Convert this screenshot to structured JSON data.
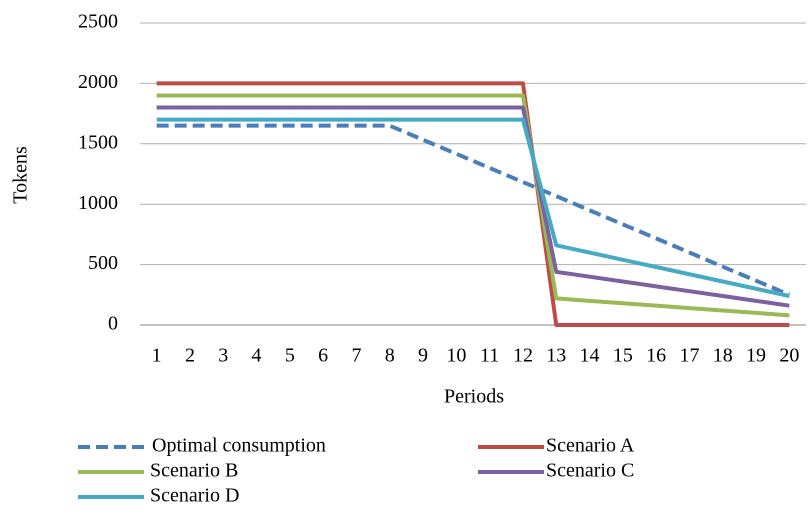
{
  "chart_data": {
    "type": "line",
    "x_label": "Periods",
    "y_label": "Tokens",
    "categories": [
      "1",
      "2",
      "3",
      "4",
      "5",
      "6",
      "7",
      "8",
      "9",
      "10",
      "11",
      "12",
      "13",
      "14",
      "15",
      "16",
      "17",
      "18",
      "19",
      "20"
    ],
    "series": [
      {
        "name": "Optimal consumption",
        "color": "#4a7ebb",
        "dashed": true,
        "values": [
          1650,
          1650,
          1650,
          1650,
          1650,
          1650,
          1650,
          1650,
          1533,
          1417,
          1300,
          1183,
          1067,
          950,
          833,
          717,
          600,
          483,
          367,
          250
        ]
      },
      {
        "name": "Scenario A",
        "color": "#be4b48",
        "values": [
          2000,
          2000,
          2000,
          2000,
          2000,
          2000,
          2000,
          2000,
          2000,
          2000,
          2000,
          2000,
          0,
          0,
          0,
          0,
          0,
          0,
          0,
          0
        ]
      },
      {
        "name": "Scenario B",
        "color": "#98b954",
        "values": [
          1900,
          1900,
          1900,
          1900,
          1900,
          1900,
          1900,
          1900,
          1900,
          1900,
          1900,
          1900,
          220,
          200,
          180,
          160,
          140,
          120,
          100,
          80
        ]
      },
      {
        "name": "Scenario C",
        "color": "#7d60a0",
        "values": [
          1800,
          1800,
          1800,
          1800,
          1800,
          1800,
          1800,
          1800,
          1800,
          1800,
          1800,
          1800,
          440,
          400,
          360,
          320,
          280,
          240,
          200,
          160
        ]
      },
      {
        "name": "Scenario D",
        "color": "#46aac5",
        "values": [
          1700,
          1700,
          1700,
          1700,
          1700,
          1700,
          1700,
          1700,
          1700,
          1700,
          1700,
          1700,
          660,
          600,
          540,
          480,
          420,
          360,
          300,
          240
        ]
      }
    ],
    "ylim": [
      0,
      2500
    ],
    "yticks": [
      0,
      500,
      1000,
      1500,
      2000,
      2500
    ],
    "grid": true
  }
}
